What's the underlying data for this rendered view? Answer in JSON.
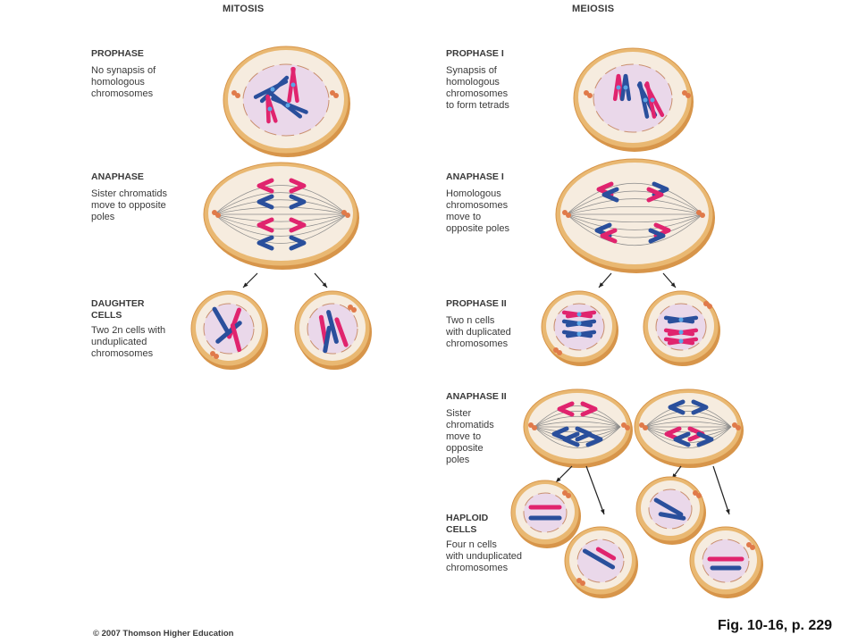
{
  "titles": {
    "mitosis": "MITOSIS",
    "meiosis": "MEIOSIS"
  },
  "mitosis_labels": [
    {
      "head": "PROPHASE",
      "desc": "No synapsis of\nhomologous\nchromosomes"
    },
    {
      "head": "ANAPHASE",
      "desc": "Sister chromatids\nmove to opposite\npoles"
    },
    {
      "head": "DAUGHTER\nCELLS",
      "desc": "Two 2n cells with\nunduplicated\nchromosomes"
    }
  ],
  "meiosis_labels": [
    {
      "head": "PROPHASE I",
      "desc": "Synapsis of\nhomologous\nchromosomes\nto form tetrads"
    },
    {
      "head": "ANAPHASE I",
      "desc": "Homologous\nchromosomes\nmove to\nopposite poles"
    },
    {
      "head": "PROPHASE II",
      "desc": "Two n cells\nwith duplicated\nchromosomes"
    },
    {
      "head": "ANAPHASE II",
      "desc": "Sister\nchromatids\nmove to\nopposite\npoles"
    },
    {
      "head": "HAPLOID\nCELLS",
      "desc": "Four n cells\nwith unduplicated\nchromosomes"
    }
  ],
  "footer": {
    "copyright": "© 2007 Thomson Higher Education",
    "figure_ref": "Fig. 10-16, p. 229"
  },
  "colors": {
    "cell_outer": "#e9b872",
    "cell_rim": "#d7954a",
    "cell_inner": "#f6ecdf",
    "nucleus": "#ead8ea",
    "chrom_blue": "#2a4f9c",
    "chrom_pink": "#e0246e",
    "centriole": "#e07a4a"
  }
}
